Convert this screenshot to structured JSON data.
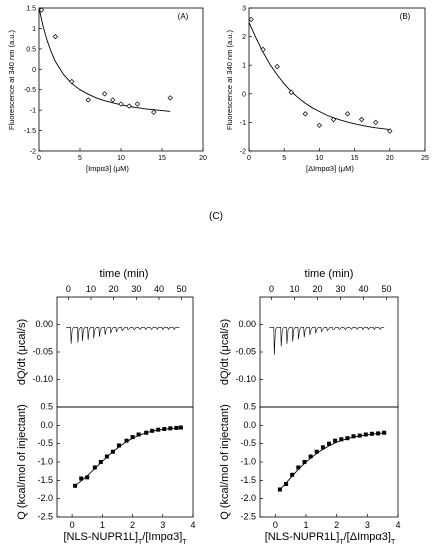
{
  "chart_data": [
    {
      "type": "scatter",
      "panel": "(A)",
      "xlabel": "[Impα3] (μM)",
      "ylabel": "Fluorescence at 340 nm (a.u.)",
      "xlim": [
        0,
        20
      ],
      "ylim": [
        -2,
        1.5
      ],
      "xticks": [
        0,
        5,
        10,
        15,
        20
      ],
      "yticks": [
        -2,
        -1.5,
        -1,
        -0.5,
        0,
        0.5,
        1,
        1.5
      ],
      "xtick_labels": [
        "0",
        "5",
        "10",
        "15",
        "20"
      ],
      "ytick_labels": [
        "-2",
        "-1.5",
        "-1",
        "-0.5",
        "0",
        "0.5",
        "1",
        "1.5"
      ],
      "points": [
        [
          0.3,
          1.45
        ],
        [
          2,
          0.8
        ],
        [
          4,
          -0.3
        ],
        [
          6,
          -0.75
        ],
        [
          8,
          -0.6
        ],
        [
          9,
          -0.75
        ],
        [
          10,
          -0.85
        ],
        [
          11,
          -0.9
        ],
        [
          12,
          -0.85
        ],
        [
          14,
          -1.05
        ],
        [
          16,
          -0.7
        ]
      ],
      "fit_x": [
        0,
        0.5,
        1,
        1.5,
        2,
        3,
        4,
        5,
        6,
        7,
        8,
        9,
        10,
        11,
        12,
        13,
        14,
        15,
        16
      ],
      "fit_y": [
        1.5,
        1.05,
        0.7,
        0.42,
        0.19,
        -0.13,
        -0.35,
        -0.5,
        -0.61,
        -0.7,
        -0.77,
        -0.82,
        -0.87,
        -0.91,
        -0.94,
        -0.97,
        -0.99,
        -1.01,
        -1.03
      ]
    },
    {
      "type": "scatter",
      "panel": "(B)",
      "xlabel": "[ΔImpα3] (μM)",
      "ylabel": "Fluorescence at 340 nm (a.u.)",
      "xlim": [
        0,
        25
      ],
      "ylim": [
        -2,
        3
      ],
      "xticks": [
        0,
        5,
        10,
        15,
        20,
        25
      ],
      "yticks": [
        -2,
        -1,
        0,
        1,
        2,
        3
      ],
      "xtick_labels": [
        "0",
        "5",
        "10",
        "15",
        "20",
        "25"
      ],
      "ytick_labels": [
        "-2",
        "-1",
        "0",
        "1",
        "2",
        "3"
      ],
      "points": [
        [
          0.3,
          2.6
        ],
        [
          2,
          1.55
        ],
        [
          4,
          0.95
        ],
        [
          6,
          0.05
        ],
        [
          8,
          -0.7
        ],
        [
          10,
          -1.1
        ],
        [
          12,
          -0.9
        ],
        [
          14,
          -0.7
        ],
        [
          16,
          -0.9
        ],
        [
          18,
          -1.0
        ],
        [
          20,
          -1.3
        ]
      ],
      "fit_x": [
        0,
        1,
        2,
        3,
        4,
        5,
        6,
        7,
        8,
        9,
        10,
        11,
        12,
        13,
        14,
        15,
        16,
        17,
        18,
        19,
        20
      ],
      "fit_y": [
        2.5,
        1.95,
        1.45,
        1.02,
        0.66,
        0.35,
        0.08,
        -0.14,
        -0.33,
        -0.49,
        -0.62,
        -0.74,
        -0.84,
        -0.92,
        -0.99,
        -1.05,
        -1.1,
        -1.15,
        -1.19,
        -1.22,
        -1.25
      ]
    },
    {
      "type": "line",
      "panel": "(C) left, top",
      "top_xlabel": "time (min)",
      "ylabel": "dQ/dt (μcal/s)",
      "xlim": [
        -5,
        55
      ],
      "ylim": [
        -0.15,
        0.05
      ],
      "xticks": [
        0,
        10,
        20,
        30,
        40,
        50
      ],
      "yticks": [
        0.0,
        -0.05,
        -0.1
      ],
      "xtick_labels": [
        "0",
        "10",
        "20",
        "30",
        "40",
        "50"
      ],
      "ytick_labels": [
        "0.00",
        "-0.05",
        "-0.10"
      ],
      "baseline": -0.005,
      "injection_times": [
        1,
        4,
        6,
        8.5,
        11,
        13.5,
        16,
        18.5,
        21,
        23.5,
        26,
        28.5,
        31,
        33.5,
        36,
        38.5,
        41,
        43.5,
        46
      ],
      "peak_minima": [
        -0.035,
        -0.033,
        -0.03,
        -0.028,
        -0.025,
        -0.022,
        -0.019,
        -0.016,
        -0.013,
        -0.011,
        -0.009,
        -0.008,
        -0.007,
        -0.006,
        -0.006,
        -0.005,
        -0.005,
        -0.005,
        -0.005
      ]
    },
    {
      "type": "line",
      "panel": "(C) right, top",
      "top_xlabel": "time (min)",
      "ylabel": "dQ/dt (μcal/s)",
      "xlim": [
        -5,
        55
      ],
      "ylim": [
        -0.15,
        0.05
      ],
      "xticks": [
        0,
        10,
        20,
        30,
        40,
        50
      ],
      "yticks": [
        0.0,
        -0.05,
        -0.1
      ],
      "xtick_labels": [
        "0",
        "10",
        "20",
        "30",
        "40",
        "50"
      ],
      "ytick_labels": [
        "0.00",
        "-0.05",
        "-0.10"
      ],
      "baseline": -0.005,
      "injection_times": [
        1,
        4,
        6.5,
        9,
        11.5,
        14,
        16.5,
        19,
        21.5,
        24,
        26.5,
        29,
        31.5,
        34,
        36.5,
        39,
        41.5,
        44,
        46.5
      ],
      "peak_minima": [
        -0.055,
        -0.04,
        -0.035,
        -0.031,
        -0.027,
        -0.023,
        -0.019,
        -0.016,
        -0.013,
        -0.011,
        -0.009,
        -0.008,
        -0.007,
        -0.006,
        -0.005,
        -0.005,
        -0.005,
        -0.005,
        -0.005
      ]
    },
    {
      "type": "scatter",
      "panel": "(C) left, bottom",
      "xlabel": "[NLS-NUPR1L]T/[Impα3]T",
      "ylabel": "Q (kcal/mol of injectant)",
      "xlim": [
        -0.5,
        4
      ],
      "ylim": [
        -2.5,
        0.5
      ],
      "xticks": [
        0,
        1,
        2,
        3,
        4
      ],
      "yticks": [
        0.5,
        0.0,
        -0.5,
        -1.0,
        -1.5,
        -2.0,
        -2.5
      ],
      "xtick_labels": [
        "0",
        "1",
        "2",
        "3",
        "4"
      ],
      "ytick_labels": [
        "0.5",
        "0.0",
        "-0.5",
        "-1.0",
        "-1.5",
        "-2.0",
        "-2.5"
      ],
      "points": [
        [
          0.1,
          -1.65
        ],
        [
          0.3,
          -1.45
        ],
        [
          0.5,
          -1.42
        ],
        [
          0.75,
          -1.15
        ],
        [
          0.95,
          -1.0
        ],
        [
          1.15,
          -0.85
        ],
        [
          1.35,
          -0.72
        ],
        [
          1.55,
          -0.55
        ],
        [
          1.8,
          -0.42
        ],
        [
          2.0,
          -0.32
        ],
        [
          2.2,
          -0.25
        ],
        [
          2.45,
          -0.2
        ],
        [
          2.65,
          -0.15
        ],
        [
          2.85,
          -0.12
        ],
        [
          3.05,
          -0.1
        ],
        [
          3.25,
          -0.08
        ],
        [
          3.45,
          -0.07
        ],
        [
          3.6,
          -0.06
        ]
      ],
      "fit_x": [
        0.05,
        0.25,
        0.5,
        0.75,
        1,
        1.25,
        1.5,
        1.75,
        2,
        2.25,
        2.5,
        2.75,
        3,
        3.25,
        3.5,
        3.65
      ],
      "fit_y": [
        -1.66,
        -1.55,
        -1.38,
        -1.18,
        -0.98,
        -0.79,
        -0.62,
        -0.47,
        -0.35,
        -0.26,
        -0.19,
        -0.14,
        -0.11,
        -0.09,
        -0.07,
        -0.06
      ]
    },
    {
      "type": "scatter",
      "panel": "(C) right, bottom",
      "xlabel": "[NLS-NUPR1L]T/[ΔImpα3]T",
      "ylabel": "Q (kcal/mol of injectant)",
      "xlim": [
        -0.5,
        4
      ],
      "ylim": [
        -2.5,
        0.5
      ],
      "xticks": [
        0,
        1,
        2,
        3,
        4
      ],
      "yticks": [
        0.5,
        0.0,
        -0.5,
        -1.0,
        -1.5,
        -2.0,
        -2.5
      ],
      "xtick_labels": [
        "0",
        "1",
        "2",
        "3",
        "4"
      ],
      "ytick_labels": [
        "0.5",
        "0.0",
        "-0.5",
        "-1.0",
        "-1.5",
        "-2.0",
        "-2.5"
      ],
      "points": [
        [
          0.15,
          -1.75
        ],
        [
          0.35,
          -1.6
        ],
        [
          0.55,
          -1.35
        ],
        [
          0.75,
          -1.15
        ],
        [
          0.95,
          -1.0
        ],
        [
          1.15,
          -0.85
        ],
        [
          1.35,
          -0.72
        ],
        [
          1.55,
          -0.6
        ],
        [
          1.75,
          -0.5
        ],
        [
          1.95,
          -0.42
        ],
        [
          2.15,
          -0.38
        ],
        [
          2.35,
          -0.35
        ],
        [
          2.55,
          -0.3
        ],
        [
          2.75,
          -0.28
        ],
        [
          2.95,
          -0.25
        ],
        [
          3.15,
          -0.23
        ],
        [
          3.35,
          -0.22
        ],
        [
          3.55,
          -0.2
        ]
      ],
      "fit_x": [
        0.1,
        0.3,
        0.5,
        0.75,
        1,
        1.25,
        1.5,
        1.75,
        2,
        2.25,
        2.5,
        2.75,
        3,
        3.25,
        3.5,
        3.6
      ],
      "fit_y": [
        -1.8,
        -1.62,
        -1.43,
        -1.2,
        -1.0,
        -0.83,
        -0.68,
        -0.56,
        -0.46,
        -0.39,
        -0.33,
        -0.29,
        -0.26,
        -0.23,
        -0.21,
        -0.2
      ]
    }
  ],
  "panel_c_label": "(C)"
}
